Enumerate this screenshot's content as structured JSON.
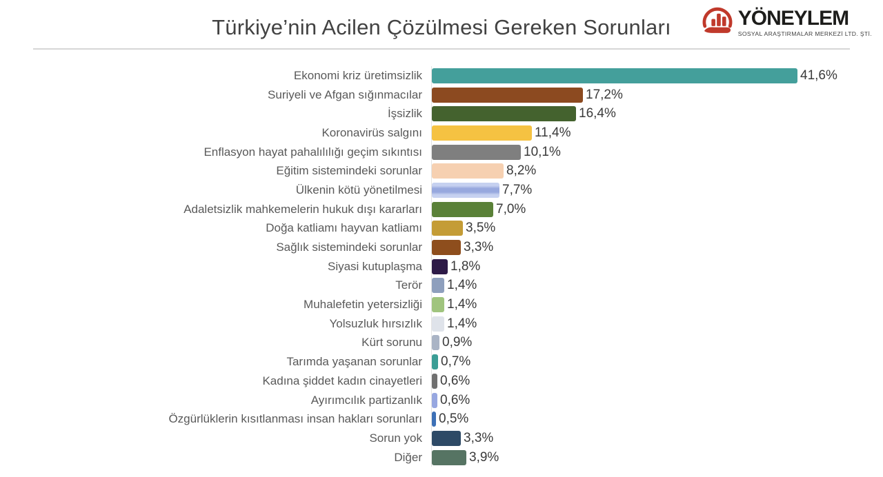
{
  "header": {
    "title": "Türkiye’nin Acilen Çözülmesi Gereken Sorunları",
    "logo": {
      "name": "YÖNEYLEM",
      "subtitle": "SOSYAL ARAŞTIRMALAR MERKEZİ LTD. ŞTİ.",
      "icon": "hand-holding-bars-icon",
      "accent_color": "#c0392b",
      "text_color": "#1d1d1b"
    }
  },
  "chart_data": {
    "type": "bar",
    "orientation": "horizontal",
    "title": "Türkiye’nin Acilen Çözülmesi Gereken Sorunları",
    "xlim": [
      0,
      44
    ],
    "grid": false,
    "legend": "none",
    "value_format": "percent, comma decimal",
    "categories": [
      "Ekonomi kriz üretimsizlik",
      "Suriyeli ve Afgan sığınmacılar",
      "İşsizlik",
      "Koronavirüs salgını",
      "Enflasyon hayat pahalılılığı geçim sıkıntısı",
      "Eğitim sistemindeki sorunlar",
      "Ülkenin kötü yönetilmesi",
      "Adaletsizlik mahkemelerin hukuk dışı kararları",
      "Doğa katliamı hayvan katliamı",
      "Sağlık sistemindeki sorunlar",
      "Siyasi kutuplaşma",
      "Terör",
      "Muhalefetin yetersizliği",
      "Yolsuzluk hırsızlık",
      "Kürt sorunu",
      "Tarımda yaşanan sorunlar",
      "Kadına şiddet kadın cinayetleri",
      "Ayırımcılık partizanlık",
      "Özgürlüklerin kısıtlanması insan hakları sorunları",
      "Sorun yok",
      "Diğer"
    ],
    "values": [
      41.6,
      17.2,
      16.4,
      11.4,
      10.1,
      8.2,
      7.7,
      7.0,
      3.5,
      3.3,
      1.8,
      1.4,
      1.4,
      1.4,
      0.9,
      0.7,
      0.6,
      0.6,
      0.5,
      3.3,
      3.9
    ],
    "value_labels": [
      "41,6%",
      "17,2%",
      "16,4%",
      "11,4%",
      "10,1%",
      "8,2%",
      "7,7%",
      "7,0%",
      "3,5%",
      "3,3%",
      "1,8%",
      "1,4%",
      "1,4%",
      "1,4%",
      "0,9%",
      "0,7%",
      "0,6%",
      "0,6%",
      "0,5%",
      "3,3%",
      "3,9%"
    ],
    "bar_colors": [
      "#449f9b",
      "#8c4a20",
      "#44622e",
      "#f5c242",
      "#7f7f7f",
      "#f6d0b1",
      {
        "base": "#c6d1f0",
        "stripe": "#97a8de"
      },
      "#5a8138",
      "#c49c36",
      "#8e4e1d",
      "#2d1a47",
      "#8e9fbd",
      "#a0c47e",
      "#dfe3ea",
      "#aab4c5",
      "#3b9d95",
      "#707070",
      "#97a7e0",
      "#3d70b6",
      "#2e4a66",
      "#567463"
    ]
  }
}
